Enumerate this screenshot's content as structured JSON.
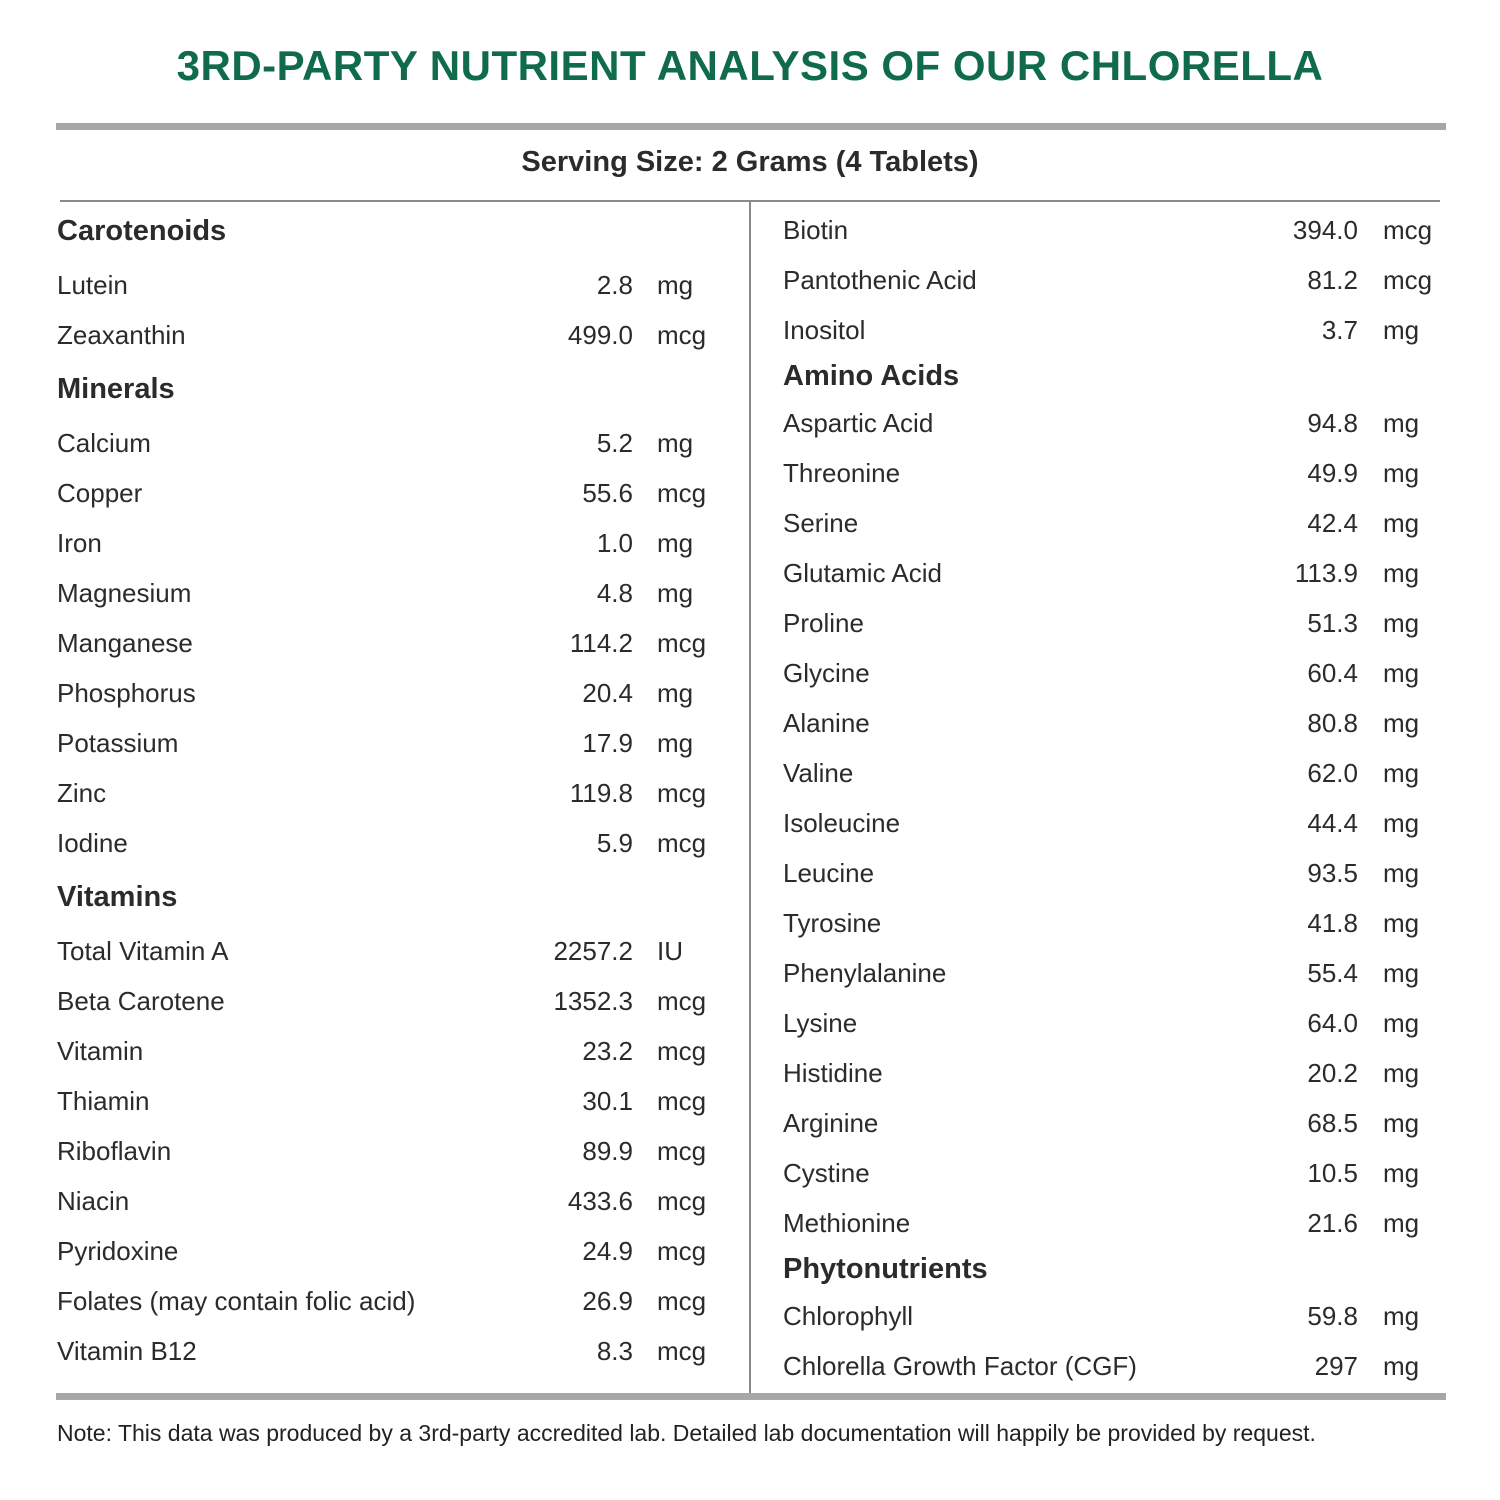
{
  "title": "3RD-PARTY NUTRIENT ANALYSIS OF OUR CHLORELLA",
  "serving_size": "Serving Size: 2 Grams (4 Tablets)",
  "brand_color": "#0f6b4b",
  "left_column": [
    {
      "type": "header",
      "label": "Carotenoids"
    },
    {
      "type": "row",
      "label": "Lutein",
      "value": "2.8",
      "unit": "mg"
    },
    {
      "type": "row",
      "label": "Zeaxanthin",
      "value": "499.0",
      "unit": "mcg"
    },
    {
      "type": "header",
      "label": "Minerals"
    },
    {
      "type": "row",
      "label": "Calcium",
      "value": "5.2",
      "unit": "mg"
    },
    {
      "type": "row",
      "label": "Copper",
      "value": "55.6",
      "unit": "mcg"
    },
    {
      "type": "row",
      "label": "Iron",
      "value": "1.0",
      "unit": "mg"
    },
    {
      "type": "row",
      "label": "Magnesium",
      "value": "4.8",
      "unit": "mg"
    },
    {
      "type": "row",
      "label": "Manganese",
      "value": "114.2",
      "unit": "mcg"
    },
    {
      "type": "row",
      "label": "Phosphorus",
      "value": "20.4",
      "unit": "mg"
    },
    {
      "type": "row",
      "label": "Potassium",
      "value": "17.9",
      "unit": "mg"
    },
    {
      "type": "row",
      "label": "Zinc",
      "value": "119.8",
      "unit": "mcg"
    },
    {
      "type": "row",
      "label": "Iodine",
      "value": "5.9",
      "unit": "mcg"
    },
    {
      "type": "header",
      "label": "Vitamins"
    },
    {
      "type": "row",
      "label": "Total Vitamin A",
      "value": "2257.2",
      "unit": "IU"
    },
    {
      "type": "row",
      "label": "Beta Carotene",
      "value": "1352.3",
      "unit": "mcg"
    },
    {
      "type": "row",
      "label": "Vitamin",
      "value": "23.2",
      "unit": "mcg"
    },
    {
      "type": "row",
      "label": "Thiamin",
      "value": "30.1",
      "unit": "mcg"
    },
    {
      "type": "row",
      "label": "Riboflavin",
      "value": "89.9",
      "unit": "mcg"
    },
    {
      "type": "row",
      "label": "Niacin",
      "value": "433.6",
      "unit": "mcg"
    },
    {
      "type": "row",
      "label": "Pyridoxine",
      "value": "24.9",
      "unit": "mcg"
    },
    {
      "type": "row",
      "label": "Folates (may contain folic acid)",
      "value": "26.9",
      "unit": "mcg"
    },
    {
      "type": "row",
      "label": "Vitamin B12",
      "value": "8.3",
      "unit": "mcg"
    }
  ],
  "right_column": [
    {
      "type": "row",
      "label": "Biotin",
      "value": "394.0",
      "unit": "mcg"
    },
    {
      "type": "row",
      "label": "Pantothenic Acid",
      "value": "81.2",
      "unit": "mcg"
    },
    {
      "type": "row",
      "label": "Inositol",
      "value": "3.7",
      "unit": "mg"
    },
    {
      "type": "header",
      "label": "Amino Acids"
    },
    {
      "type": "row",
      "label": "Aspartic Acid",
      "value": "94.8",
      "unit": "mg"
    },
    {
      "type": "row",
      "label": "Threonine",
      "value": "49.9",
      "unit": "mg"
    },
    {
      "type": "row",
      "label": "Serine",
      "value": "42.4",
      "unit": "mg"
    },
    {
      "type": "row",
      "label": "Glutamic Acid",
      "value": "113.9",
      "unit": "mg"
    },
    {
      "type": "row",
      "label": "Proline",
      "value": "51.3",
      "unit": "mg"
    },
    {
      "type": "row",
      "label": "Glycine",
      "value": "60.4",
      "unit": "mg"
    },
    {
      "type": "row",
      "label": "Alanine",
      "value": "80.8",
      "unit": "mg"
    },
    {
      "type": "row",
      "label": "Valine",
      "value": "62.0",
      "unit": "mg"
    },
    {
      "type": "row",
      "label": "Isoleucine",
      "value": "44.4",
      "unit": "mg"
    },
    {
      "type": "row",
      "label": "Leucine",
      "value": "93.5",
      "unit": "mg"
    },
    {
      "type": "row",
      "label": "Tyrosine",
      "value": "41.8",
      "unit": "mg"
    },
    {
      "type": "row",
      "label": "Phenylalanine",
      "value": "55.4",
      "unit": "mg"
    },
    {
      "type": "row",
      "label": "Lysine",
      "value": "64.0",
      "unit": "mg"
    },
    {
      "type": "row",
      "label": "Histidine",
      "value": "20.2",
      "unit": "mg"
    },
    {
      "type": "row",
      "label": "Arginine",
      "value": "68.5",
      "unit": "mg"
    },
    {
      "type": "row",
      "label": "Cystine",
      "value": "10.5",
      "unit": "mg"
    },
    {
      "type": "row",
      "label": "Methionine",
      "value": "21.6",
      "unit": "mg"
    },
    {
      "type": "header",
      "label": "Phytonutrients"
    },
    {
      "type": "row",
      "label": "Chlorophyll",
      "value": "59.8",
      "unit": "mg"
    },
    {
      "type": "row",
      "label": "Chlorella Growth Factor (CGF)",
      "value": "297",
      "unit": "mg"
    }
  ],
  "note": "Note: This data was produced by a 3rd-party accredited lab. Detailed lab documentation will happily be provided by request."
}
